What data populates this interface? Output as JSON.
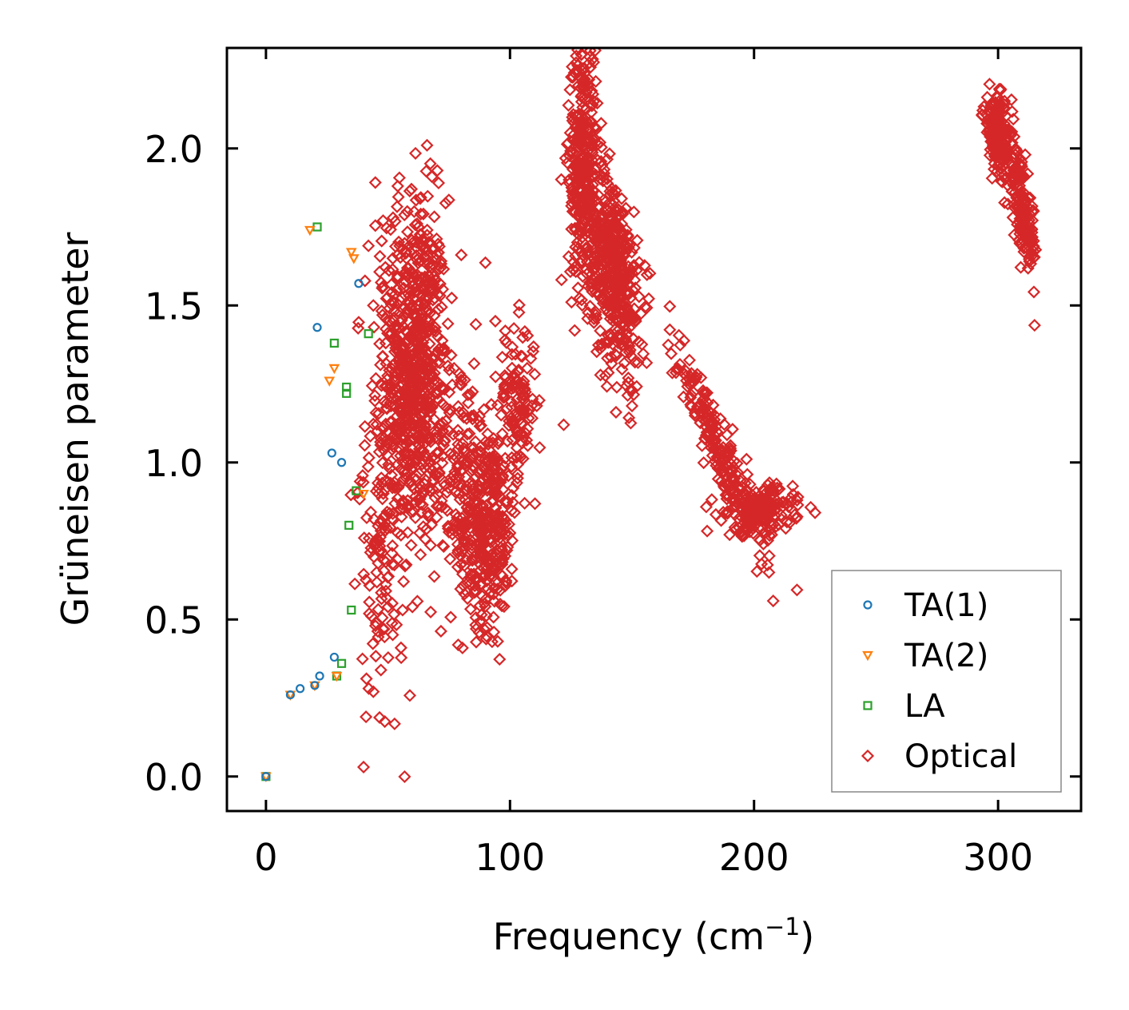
{
  "chart_data": {
    "type": "scatter",
    "title": "",
    "xlabel": "Frequency (cm",
    "xlabel_sup": "−1",
    "xlabel_close": ")",
    "ylabel": "Grüneisen parameter",
    "xlim": [
      -16,
      334
    ],
    "ylim": [
      -0.11,
      2.32
    ],
    "xticks": [
      0,
      100,
      200,
      300
    ],
    "xtick_labels": [
      "0",
      "100",
      "200",
      "300"
    ],
    "yticks": [
      0.0,
      0.5,
      1.0,
      1.5,
      2.0
    ],
    "ytick_labels": [
      "0.0",
      "0.5",
      "1.0",
      "1.5",
      "2.0"
    ],
    "grid": false,
    "legend_position": "lower-right",
    "series": [
      {
        "name": "TA(1)",
        "marker": "circle",
        "color": "#1f77b4",
        "points": [
          [
            0,
            0
          ],
          [
            10,
            0.26
          ],
          [
            14,
            0.28
          ],
          [
            20,
            0.29
          ],
          [
            22,
            0.32
          ],
          [
            28,
            0.38
          ],
          [
            21,
            1.43
          ],
          [
            27,
            1.03
          ],
          [
            31,
            1.0
          ],
          [
            38,
            1.57
          ]
        ]
      },
      {
        "name": "TA(2)",
        "marker": "triangle-down",
        "color": "#ff7f0e",
        "points": [
          [
            0,
            0
          ],
          [
            10,
            0.26
          ],
          [
            20,
            0.29
          ],
          [
            18,
            1.74
          ],
          [
            26,
            1.26
          ],
          [
            28,
            1.3
          ],
          [
            35,
            1.67
          ],
          [
            36,
            1.65
          ],
          [
            29,
            0.32
          ],
          [
            40,
            0.9
          ]
        ]
      },
      {
        "name": "LA",
        "marker": "square",
        "color": "#2ca02c",
        "points": [
          [
            0,
            0
          ],
          [
            21,
            1.75
          ],
          [
            28,
            1.38
          ],
          [
            33,
            1.22
          ],
          [
            33,
            1.24
          ],
          [
            42,
            1.41
          ],
          [
            37,
            0.91
          ],
          [
            34,
            0.8
          ],
          [
            35,
            0.53
          ],
          [
            31,
            0.36
          ],
          [
            29,
            0.32
          ]
        ]
      },
      {
        "name": "Optical",
        "marker": "diamond",
        "color": "#d62728",
        "clusters": [
          {
            "x": 62,
            "y": 1.3,
            "sx": 6,
            "sy": 0.27,
            "n": 650,
            "slope": 0
          },
          {
            "x": 50,
            "y": 1.05,
            "sx": 5,
            "sy": 0.35,
            "n": 150,
            "slope": 0
          },
          {
            "x": 45,
            "y": 0.7,
            "sx": 4,
            "sy": 0.2,
            "n": 60,
            "slope": 0
          },
          {
            "x": 80,
            "y": 0.95,
            "sx": 6,
            "sy": 0.2,
            "n": 160,
            "slope": 0
          },
          {
            "x": 91,
            "y": 0.8,
            "sx": 6,
            "sy": 0.16,
            "n": 320,
            "slope": 0
          },
          {
            "x": 103,
            "y": 1.2,
            "sx": 4,
            "sy": 0.12,
            "n": 120,
            "slope": 0
          },
          {
            "x": 130,
            "y": 1.95,
            "sx": 3,
            "sy": 0.2,
            "n": 350,
            "slope": 0
          },
          {
            "x": 143,
            "y": 1.6,
            "sx": 5,
            "sy": 0.15,
            "n": 450,
            "slope": -0.012
          },
          {
            "x": 185,
            "y": 1.05,
            "sx": 9,
            "sy": 0.06,
            "n": 200,
            "slope": -0.018
          },
          {
            "x": 202,
            "y": 0.85,
            "sx": 7,
            "sy": 0.04,
            "n": 200,
            "slope": 0
          },
          {
            "x": 300,
            "y": 2.04,
            "sx": 3,
            "sy": 0.06,
            "n": 200,
            "slope": -0.01
          },
          {
            "x": 310,
            "y": 1.8,
            "sx": 3,
            "sy": 0.07,
            "n": 160,
            "slope": -0.025
          }
        ],
        "outliers": [
          [
            40,
            0.03
          ],
          [
            41,
            0.19
          ],
          [
            44,
            0.27
          ],
          [
            48,
            0.47
          ],
          [
            66,
            2.01
          ],
          [
            68,
            1.91
          ],
          [
            86,
            1.44
          ],
          [
            94,
            1.45
          ],
          [
            106,
            0.87
          ],
          [
            122,
            1.12
          ],
          [
            128,
            2.2
          ],
          [
            150,
            1.23
          ],
          [
            150,
            1.18
          ],
          [
            190,
            0.77
          ],
          [
            213,
            0.79
          ],
          [
            218,
            0.89
          ],
          [
            225,
            0.84
          ],
          [
            54,
            1.88
          ],
          [
            48,
            1.77
          ],
          [
            42,
            1.69
          ],
          [
            44,
            1.5
          ],
          [
            52,
            1.65
          ],
          [
            57,
            0.67
          ],
          [
            60,
            0.54
          ],
          [
            56,
            0.53
          ],
          [
            50,
            0.54
          ]
        ]
      }
    ]
  }
}
